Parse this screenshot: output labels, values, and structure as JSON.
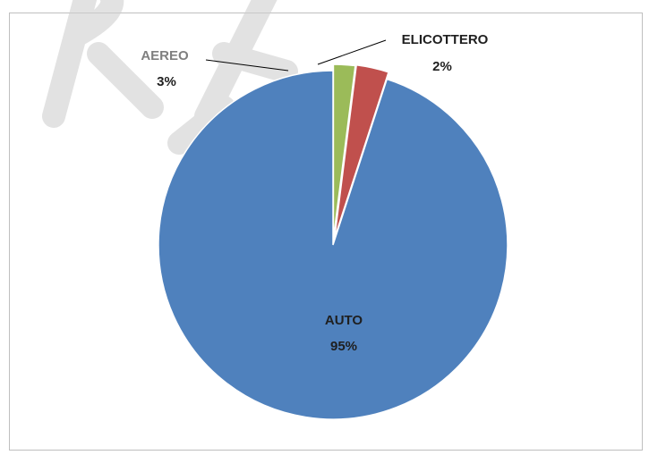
{
  "chart_data": {
    "type": "pie",
    "title": "",
    "start_angle_deg": 0,
    "direction": "counter-clockwise",
    "exploded": true,
    "legend": "none",
    "data_labels": "category and percentage",
    "slices": [
      {
        "label": "AUTO",
        "value": 95,
        "display": "95%",
        "color": "#4f81bd"
      },
      {
        "label": "AEREO",
        "value": 3,
        "display": "3%",
        "color": "#c0504d"
      },
      {
        "label": "ELICOTTERO",
        "value": 2,
        "display": "2%",
        "color": "#9bbb59"
      }
    ]
  }
}
